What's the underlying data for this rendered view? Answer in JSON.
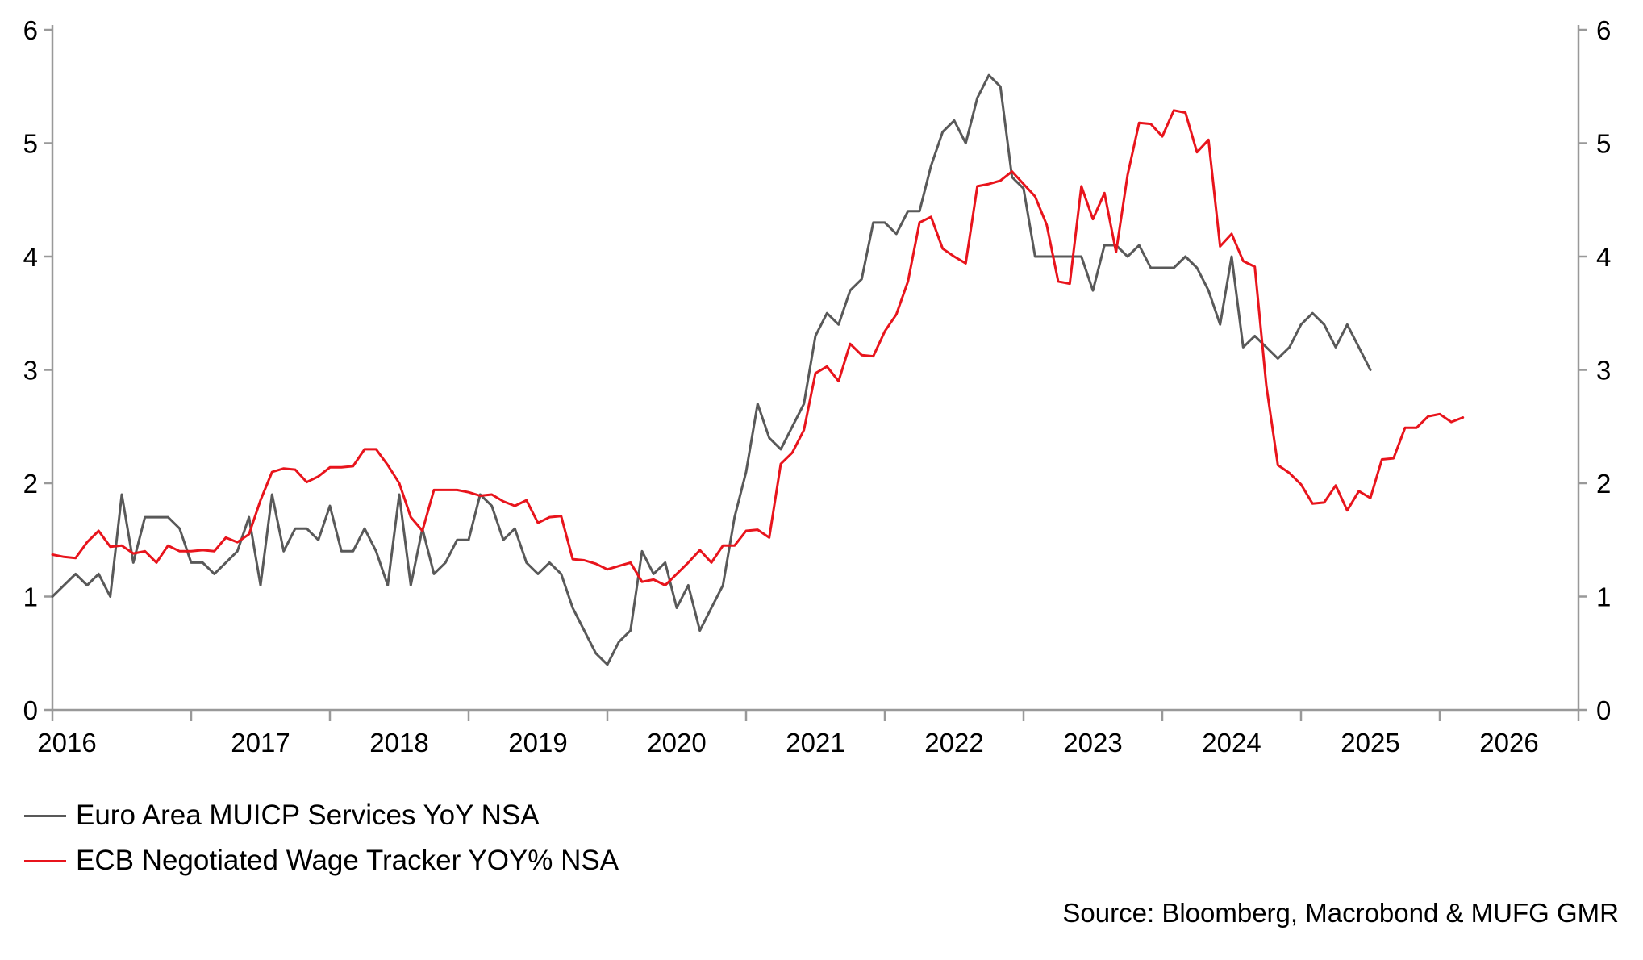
{
  "chart_data": {
    "type": "line",
    "title": "",
    "xlabel": "",
    "ylabel": "",
    "x_start": "2016-01",
    "x_tick_labels": [
      "2016",
      "2017",
      "2018",
      "2019",
      "2020",
      "2021",
      "2022",
      "2023",
      "2024",
      "2025",
      "2026"
    ],
    "xlim": [
      "2016-01",
      "2026-12"
    ],
    "ylim": [
      0,
      6
    ],
    "y_ticks": [
      0,
      1,
      2,
      3,
      4,
      5,
      6
    ],
    "y_tick_labels": [
      "0",
      "1",
      "2",
      "3",
      "4",
      "5",
      "6"
    ],
    "secondary_y_axis": true,
    "grid": false,
    "legend_position": "bottom-left",
    "series": [
      {
        "name": "Euro Area MUICP Services YoY NSA",
        "color": "#595959",
        "frequency": "monthly",
        "values": [
          1.0,
          1.1,
          1.2,
          1.1,
          1.2,
          1.0,
          1.9,
          1.3,
          1.7,
          1.7,
          1.7,
          1.6,
          1.3,
          1.3,
          1.2,
          1.3,
          1.4,
          1.7,
          1.1,
          1.9,
          1.4,
          1.6,
          1.6,
          1.5,
          1.8,
          1.4,
          1.4,
          1.6,
          1.4,
          1.1,
          1.9,
          1.1,
          1.6,
          1.2,
          1.3,
          1.5,
          1.5,
          1.9,
          1.8,
          1.5,
          1.6,
          1.3,
          1.2,
          1.3,
          1.2,
          0.9,
          0.7,
          0.5,
          0.4,
          0.6,
          0.7,
          1.4,
          1.2,
          1.3,
          0.9,
          1.1,
          0.7,
          0.9,
          1.1,
          1.7,
          2.1,
          2.7,
          2.4,
          2.3,
          2.5,
          2.7,
          3.3,
          3.5,
          3.4,
          3.7,
          3.8,
          4.3,
          4.3,
          4.2,
          4.4,
          4.4,
          4.8,
          5.1,
          5.2,
          5.0,
          5.4,
          5.6,
          5.5,
          4.7,
          4.6,
          4.0,
          4.0,
          4.0,
          4.0,
          4.0,
          3.7,
          4.1,
          4.1,
          4.0,
          4.1,
          3.9,
          3.9,
          3.9,
          4.0,
          3.9,
          3.7,
          3.4,
          4.0,
          3.2,
          3.3,
          3.2,
          3.1,
          3.2,
          3.4,
          3.5,
          3.4,
          3.2,
          3.4,
          3.2,
          3.0
        ]
      },
      {
        "name": "ECB Negotiated Wage Tracker YOY% NSA",
        "color": "#e8141c",
        "frequency": "monthly",
        "values": [
          1.37,
          1.35,
          1.34,
          1.48,
          1.58,
          1.44,
          1.45,
          1.38,
          1.4,
          1.3,
          1.45,
          1.4,
          1.4,
          1.41,
          1.4,
          1.52,
          1.48,
          1.55,
          1.85,
          2.1,
          2.13,
          2.12,
          2.01,
          2.06,
          2.14,
          2.14,
          2.15,
          2.3,
          2.3,
          2.16,
          2.0,
          1.7,
          1.58,
          1.94,
          1.94,
          1.94,
          1.92,
          1.89,
          1.9,
          1.84,
          1.8,
          1.85,
          1.65,
          1.7,
          1.71,
          1.33,
          1.32,
          1.29,
          1.24,
          1.27,
          1.3,
          1.13,
          1.15,
          1.1,
          1.2,
          1.3,
          1.41,
          1.3,
          1.45,
          1.45,
          1.58,
          1.59,
          1.52,
          2.17,
          2.27,
          2.47,
          2.97,
          3.03,
          2.9,
          3.23,
          3.13,
          3.12,
          3.34,
          3.49,
          3.78,
          4.3,
          4.35,
          4.07,
          4.0,
          3.94,
          4.62,
          4.64,
          4.67,
          4.75,
          4.64,
          4.53,
          4.28,
          3.78,
          3.76,
          4.62,
          4.33,
          4.56,
          4.04,
          4.72,
          5.18,
          5.17,
          5.06,
          5.29,
          5.27,
          4.92,
          5.03,
          4.09,
          4.2,
          3.96,
          3.91,
          2.86,
          2.16,
          2.09,
          1.99,
          1.82,
          1.83,
          1.98,
          1.76,
          1.93,
          1.87,
          2.21,
          2.22,
          2.49,
          2.49,
          2.59,
          2.61,
          2.54,
          2.58
        ]
      }
    ]
  },
  "source": "Source: Bloomberg, Macrobond & MUFG GMR"
}
